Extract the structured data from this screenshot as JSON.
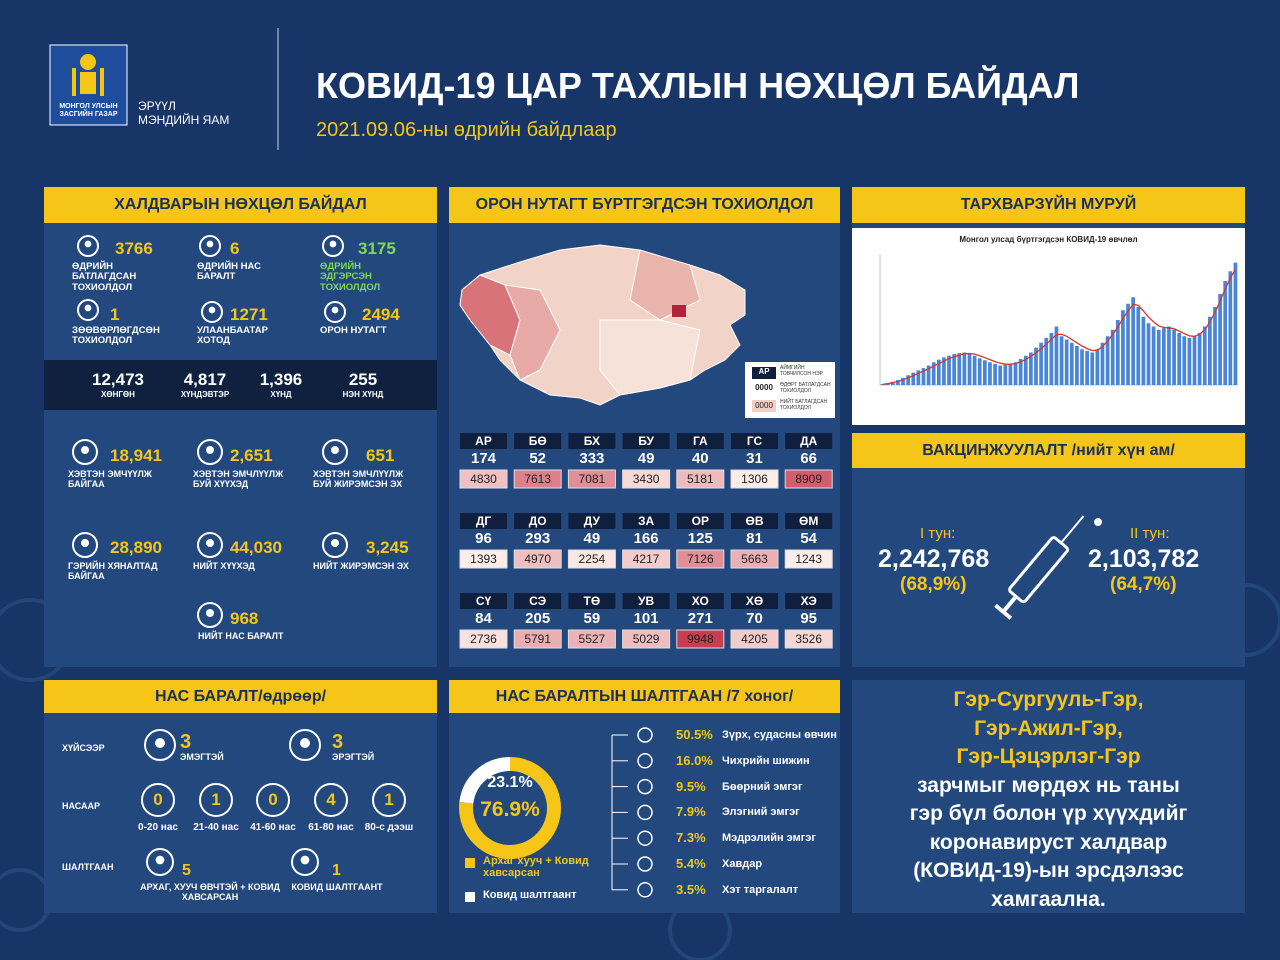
{
  "header": {
    "logo_text": "МОНГОЛ УЛСЫН ЗАСГИЙН ГАЗАР",
    "ministry": [
      "ЭРҮҮЛ",
      "МЭНДИЙН ЯАМ"
    ],
    "title": "КОВИД-19 ЦАР ТАХЛЫН НӨХЦӨЛ БАЙДАЛ",
    "subtitle": "2021.09.06-ны өдрийн байдлаар"
  },
  "situation": {
    "title": "ХАЛДВАРЫН НӨХЦӨЛ БАЙДАЛ",
    "daily": [
      {
        "value": "3766",
        "label": "ӨДРИЙН БАТЛАГДСАН ТОХИОЛДОЛ"
      },
      {
        "value": "6",
        "label": "ӨДРИЙН НАС БАРАЛТ"
      },
      {
        "value": "3175",
        "label": "ӨДРИЙН ЭДГЭРСЭН ТОХИОЛДОЛ"
      },
      {
        "value": "1",
        "label": "ЗӨӨВӨРЛӨГДСӨН ТОХИОЛДОЛ"
      },
      {
        "value": "1271",
        "label": "УЛААНБААТАР ХОТОД"
      },
      {
        "value": "2494",
        "label": "ОРОН НУТАГТ"
      }
    ],
    "severity": [
      {
        "value": "12,473",
        "label": "ХӨНГӨН"
      },
      {
        "value": "4,817",
        "label": "ХҮНДЭВТЭР"
      },
      {
        "value": "1,396",
        "label": "ХҮНД"
      },
      {
        "value": "255",
        "label": "НЭН ХҮНД"
      }
    ],
    "care": [
      {
        "value": "18,941",
        "label": "ХЭВТЭН ЭМЧҮҮЛЖ БАЙГАА"
      },
      {
        "value": "2,651",
        "label": "ХЭВТЭН ЭМЧЛҮҮЛЖ БУЙ ХҮҮХЭД"
      },
      {
        "value": "651",
        "label": "ХЭВТЭН ЭМЧЛҮҮЛЖ БУЙ ЖИРЭМСЭН ЭХ"
      },
      {
        "value": "28,890",
        "label": "ГЭРИЙН ХЯНАЛТАД БАЙГАА"
      },
      {
        "value": "44,030",
        "label": "НИЙТ ХҮҮХЭД"
      },
      {
        "value": "3,245",
        "label": "НИЙТ ЖИРЭМСЭН ЭХ"
      },
      {
        "value": "968",
        "label": "НИЙТ НАС БАРАЛТ"
      }
    ]
  },
  "provinces": {
    "title": "ОРОН НУТАГТ БҮРТГЭГДСЭН ТОХИОЛДОЛ",
    "legend": {
      "code": "АР",
      "code_label": "АЙМГИЙН ТОВЧИЛСОН НЭР",
      "daily": "0000",
      "daily_label": "ӨДӨРТ БАТЛАГДСАН ТОХИОЛДОЛ",
      "total": "0000",
      "total_label": "НИЙТ БАТЛАГДСАН ТОХИОЛДОЛ"
    },
    "rows": [
      [
        [
          "АР",
          174,
          4830
        ],
        [
          "БӨ",
          52,
          7613
        ],
        [
          "БХ",
          333,
          7081
        ],
        [
          "БУ",
          49,
          3430
        ],
        [
          "ГА",
          40,
          5181
        ],
        [
          "ГС",
          31,
          1306
        ],
        [
          "ДА",
          66,
          8909
        ]
      ],
      [
        [
          "ДГ",
          96,
          1393
        ],
        [
          "ДО",
          293,
          4970
        ],
        [
          "ДУ",
          49,
          2254
        ],
        [
          "ЗА",
          166,
          4217
        ],
        [
          "ОР",
          125,
          7126
        ],
        [
          "ӨВ",
          81,
          5663
        ],
        [
          "ӨМ",
          54,
          1243
        ]
      ],
      [
        [
          "СҮ",
          84,
          2736
        ],
        [
          "СЭ",
          205,
          5791
        ],
        [
          "ТӨ",
          59,
          5527
        ],
        [
          "УВ",
          101,
          5029
        ],
        [
          "ХО",
          271,
          9948
        ],
        [
          "ХӨ",
          70,
          4205
        ],
        [
          "ХЭ",
          95,
          3526
        ]
      ]
    ]
  },
  "epi_chart": {
    "heading": "ТАРХВАРЗҮЙН МУРУЙ",
    "type": "bar",
    "title": "Монгол улсад бүртгэгдсэн КОВИД-19 өвчлөл",
    "ylim": [
      0,
      4000
    ],
    "series": [
      {
        "type": "bar",
        "color": "#4a86d8",
        "values": [
          30,
          60,
          100,
          150,
          220,
          300,
          380,
          450,
          520,
          600,
          700,
          780,
          850,
          900,
          950,
          980,
          1000,
          960,
          900,
          820,
          760,
          700,
          650,
          600,
          620,
          650,
          700,
          800,
          900,
          1000,
          1150,
          1300,
          1450,
          1600,
          1800,
          1500,
          1400,
          1300,
          1200,
          1100,
          1050,
          1000,
          1100,
          1300,
          1500,
          1700,
          2000,
          2300,
          2500,
          2700,
          2400,
          2100,
          1900,
          1800,
          1700,
          1750,
          1800,
          1700,
          1600,
          1500,
          1450,
          1500,
          1600,
          1800,
          2100,
          2400,
          2800,
          3200,
          3500,
          3766
        ]
      },
      {
        "type": "line",
        "color": "#d9342b",
        "values": [
          20,
          40,
          70,
          110,
          160,
          220,
          290,
          360,
          430,
          500,
          580,
          660,
          740,
          810,
          870,
          920,
          960,
          970,
          950,
          900,
          840,
          780,
          720,
          670,
          640,
          640,
          660,
          710,
          790,
          880,
          990,
          1120,
          1260,
          1400,
          1550,
          1560,
          1500,
          1400,
          1300,
          1200,
          1120,
          1060,
          1070,
          1180,
          1350,
          1550,
          1780,
          2040,
          2280,
          2480,
          2450,
          2280,
          2090,
          1940,
          1820,
          1770,
          1760,
          1730,
          1660,
          1580,
          1510,
          1500,
          1560,
          1700,
          1940,
          2230,
          2580,
          2950,
          3300,
          3550
        ]
      }
    ]
  },
  "vaccination": {
    "title": "ВАКЦИНЖУУЛАЛТ /нийт хүн ам/",
    "doses": [
      {
        "label": "I тун:",
        "count": "2,242,768",
        "share": "(68,9%)"
      },
      {
        "label": "II тун:",
        "count": "2,103,782",
        "share": "(64,7%)"
      }
    ]
  },
  "deaths": {
    "title": "НАС БАРАЛТ/өдрөөр/",
    "sex_label": "ХҮЙСЭЭР",
    "sex": [
      {
        "value": "3",
        "label": "ЭМЭГТЭЙ"
      },
      {
        "value": "3",
        "label": "ЭРЭГТЭЙ"
      }
    ],
    "age_label": "НАСААР",
    "age": [
      {
        "value": "0",
        "label": "0-20 нас"
      },
      {
        "value": "1",
        "label": "21-40 нас"
      },
      {
        "value": "0",
        "label": "41-60 нас"
      },
      {
        "value": "4",
        "label": "61-80 нас"
      },
      {
        "value": "1",
        "label": "80-с дээш"
      }
    ],
    "cause_label": "ШАЛТГААН",
    "cause": [
      {
        "value": "5",
        "label": "АРХАГ, ХУУЧ ӨВЧТЭЙ + КОВИД ХАВСАРСАН"
      },
      {
        "value": "1",
        "label": "КОВИД ШАЛТГААНТ"
      }
    ]
  },
  "causes": {
    "title": "НАС БАРАЛТЫН ШАЛТГААН /7 хоног/",
    "donut": {
      "type": "pie",
      "categories": [
        "Ковид шалтгаант",
        "Архаг хууч + Ковид хавсарсан"
      ],
      "values": [
        23.1,
        76.9
      ],
      "value_labels": [
        "23.1%",
        "76.9%"
      ],
      "colors": [
        "#ffffff",
        "#f5c518"
      ]
    },
    "diseases": [
      {
        "share": "50.5%",
        "name": "Зүрх, судасны өвчин"
      },
      {
        "share": "16.0%",
        "name": "Чихрийн шижин"
      },
      {
        "share": "9.5%",
        "name": "Бөөрний эмгэг"
      },
      {
        "share": "7.9%",
        "name": "Элэгний эмгэг"
      },
      {
        "share": "7.3%",
        "name": "Мэдрэлийн эмгэг"
      },
      {
        "share": "5.4%",
        "name": "Хавдар"
      },
      {
        "share": "3.5%",
        "name": "Хэт таргалалт"
      }
    ]
  },
  "message": {
    "highlight": [
      "Гэр-Сургууль-Гэр,",
      "Гэр-Ажил-Гэр,",
      "Гэр-Цэцэрлэг-Гэр"
    ],
    "body": [
      "зарчмыг мөрдөх нь таны",
      "гэр бүл болон үр хүүхдийг",
      "коронавируст халдвар",
      "(КОВИД-19)-ын эрсдэлээс",
      "хамгаална."
    ]
  }
}
